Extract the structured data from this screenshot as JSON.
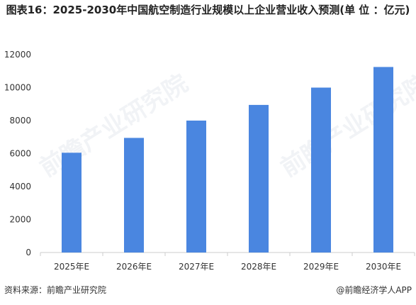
{
  "title": "图表16：2025-2030年中国航空制造行业规模以上企业营业收入预测(单 位 ：亿元)",
  "footer": {
    "source": "资料来源：前瞻产业研究院",
    "brand": "@前瞻经济学人APP"
  },
  "watermark": {
    "text": "前瞻产业研究院"
  },
  "colors": {
    "bar": "#4a86e0",
    "axis": "#cccccc",
    "text": "#333333"
  },
  "chart_data": {
    "type": "bar",
    "categories": [
      "2025年E",
      "2026年E",
      "2027年E",
      "2028年E",
      "2029年E",
      "2030年E"
    ],
    "values": [
      6050,
      6950,
      8000,
      8950,
      10000,
      11250
    ],
    "ylim": [
      0,
      12000
    ],
    "yticks": [
      0,
      2000,
      4000,
      6000,
      8000,
      10000,
      12000
    ],
    "ytick_labels": [
      "0",
      "2000",
      "4000",
      "6000",
      "8000",
      "10000",
      "12000"
    ],
    "xlabel": "",
    "ylabel": "",
    "grid": false,
    "legend": "none"
  }
}
